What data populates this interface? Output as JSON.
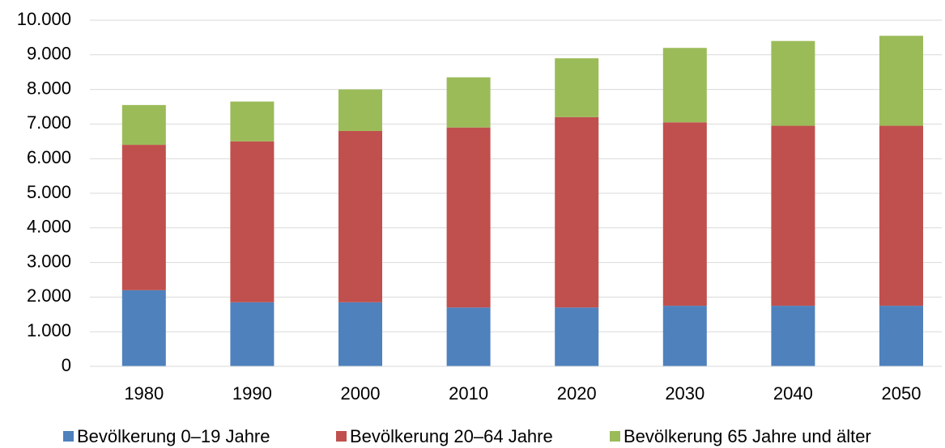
{
  "chart_data": {
    "type": "stacked_bar",
    "categories": [
      "1980",
      "1990",
      "2000",
      "2010",
      "2020",
      "2030",
      "2040",
      "2050"
    ],
    "series": [
      {
        "name": "Bevölkerung 0–19 Jahre",
        "color": "#4f81bd",
        "values": [
          2200,
          1850,
          1850,
          1700,
          1700,
          1750,
          1750,
          1750
        ]
      },
      {
        "name": "Bevölkerung 20–64 Jahre",
        "color": "#c0504d",
        "values": [
          4200,
          4650,
          4950,
          5200,
          5500,
          5300,
          5200,
          5200
        ]
      },
      {
        "name": "Bevölkerung 65 Jahre und älter",
        "color": "#9bbb59",
        "values": [
          1150,
          1150,
          1200,
          1450,
          1700,
          2150,
          2450,
          2600
        ]
      }
    ],
    "ylim": [
      0,
      10000
    ],
    "yticks": [
      0,
      {
        "value": 1000,
        "label": "1.000"
      },
      {
        "value": 2000,
        "label": "2.000"
      },
      {
        "value": 3000,
        "label": "3.000"
      },
      {
        "value": 4000,
        "label": "4.000"
      },
      {
        "value": 5000,
        "label": "5.000"
      },
      {
        "value": 6000,
        "label": "6.000"
      },
      {
        "value": 7000,
        "label": "7.000"
      },
      {
        "value": 8000,
        "label": "8.000"
      },
      {
        "value": 9000,
        "label": "9.000"
      },
      {
        "value": 10000,
        "label": "10.000"
      }
    ],
    "grid": true,
    "legend": "bottom"
  }
}
